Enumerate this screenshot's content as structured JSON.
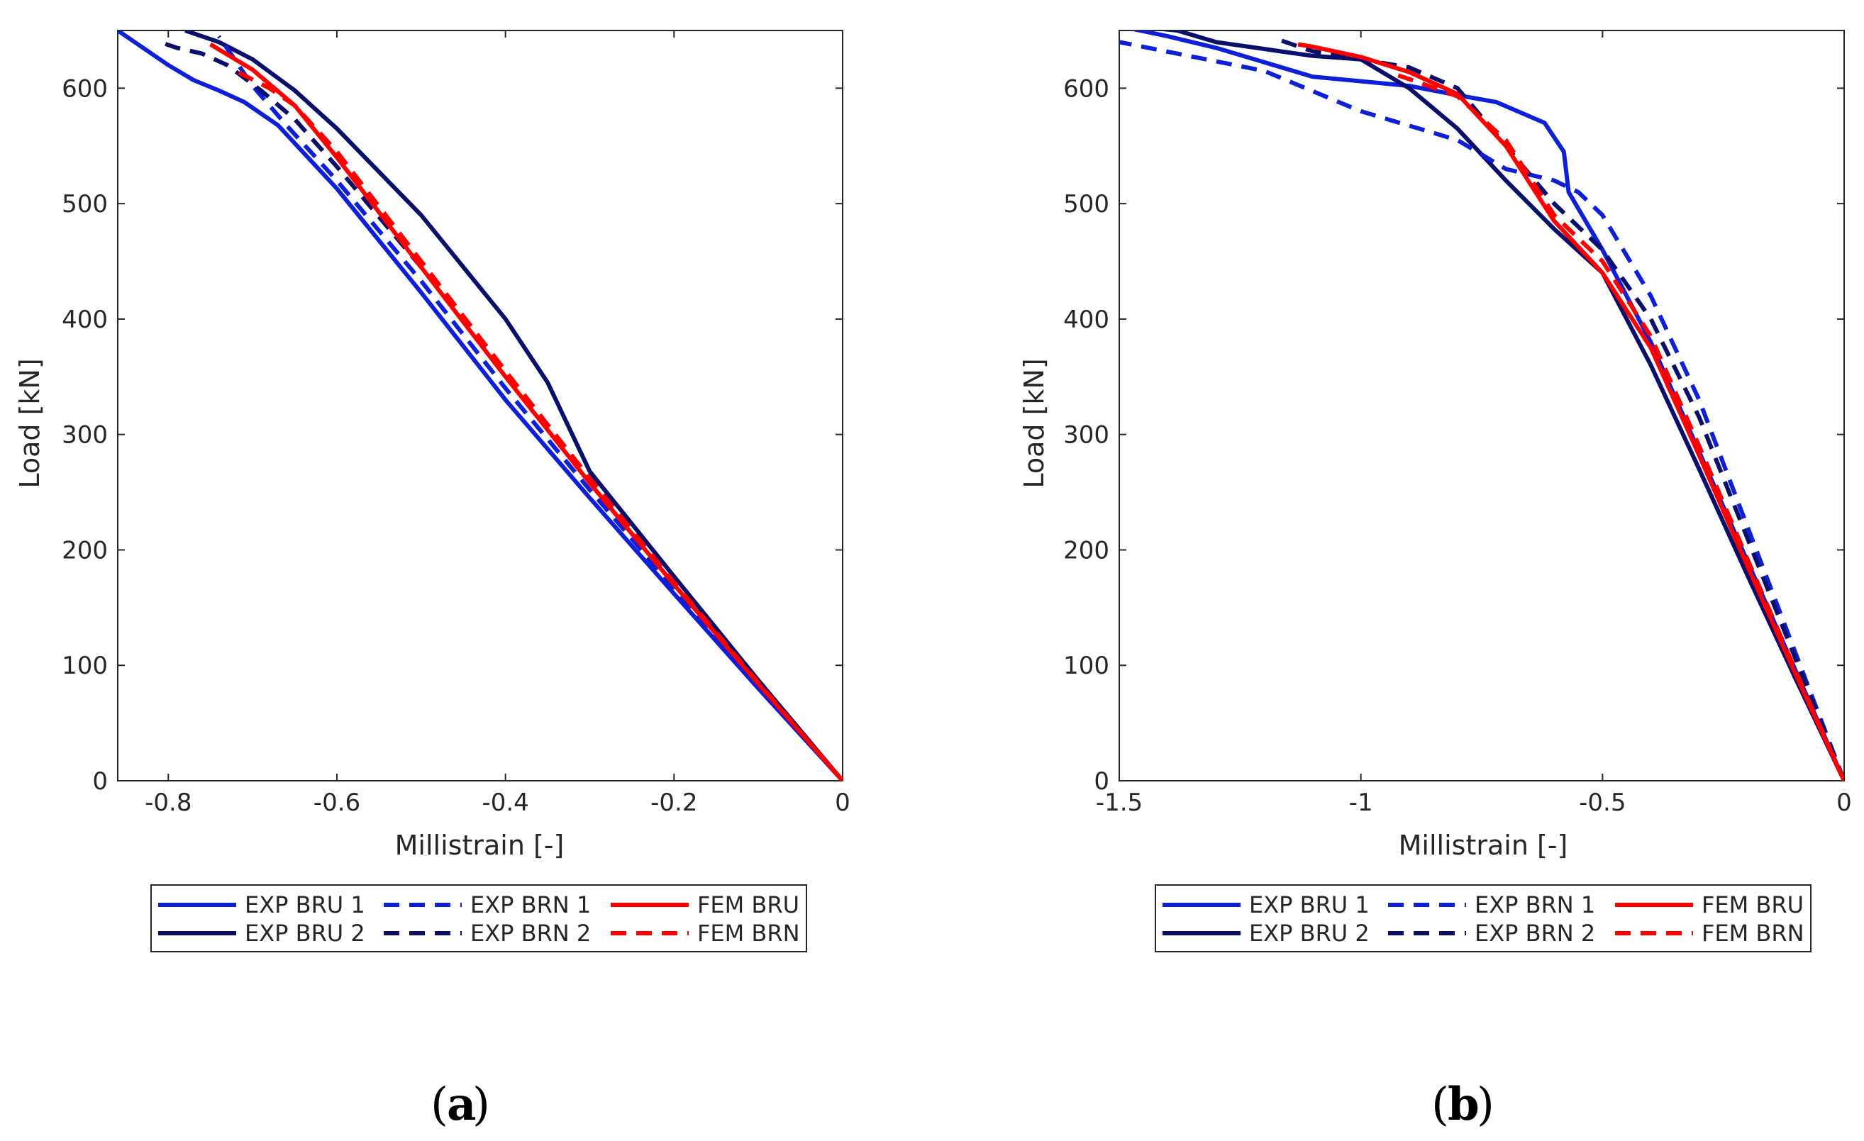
{
  "colors": {
    "exp_bru_1": "#0d1fd8",
    "exp_bru_2": "#0a0f6b",
    "fem": "#ff0000",
    "axis": "#262626"
  },
  "chart_data": [
    {
      "type": "line",
      "panel_label": "a",
      "xlabel": "Millistrain [-]",
      "ylabel": "Load [kN]",
      "xlim": [
        -0.86,
        0
      ],
      "ylim": [
        0,
        650
      ],
      "xticks": [
        -0.8,
        -0.6,
        -0.4,
        -0.2,
        0
      ],
      "xtick_labels": [
        "-0.8",
        "-0.6",
        "-0.4",
        "-0.2",
        "0"
      ],
      "yticks": [
        0,
        100,
        200,
        300,
        400,
        500,
        600
      ],
      "ytick_labels": [
        "0",
        "100",
        "200",
        "300",
        "400",
        "500",
        "600"
      ],
      "grid": false,
      "legend_position": "below",
      "series": [
        {
          "name": "EXP BRU 1",
          "color": "#0d1fd8",
          "dash": "solid",
          "x": [
            0,
            -0.1,
            -0.2,
            -0.3,
            -0.4,
            -0.5,
            -0.6,
            -0.67,
            -0.71,
            -0.74,
            -0.77,
            -0.8,
            -0.84,
            -0.86
          ],
          "y": [
            0,
            80,
            162,
            245,
            330,
            423,
            513,
            568,
            588,
            598,
            607,
            620,
            640,
            650
          ]
        },
        {
          "name": "EXP BRU 2",
          "color": "#0a0f6b",
          "dash": "solid",
          "x": [
            0,
            -0.1,
            -0.2,
            -0.3,
            -0.35,
            -0.4,
            -0.5,
            -0.6,
            -0.65,
            -0.7,
            -0.74,
            -0.78
          ],
          "y": [
            0,
            87,
            177,
            268,
            345,
            400,
            490,
            565,
            598,
            625,
            640,
            650
          ]
        },
        {
          "name": "EXP BRN 1",
          "color": "#0d1fd8",
          "dash": "dashed",
          "x": [
            0,
            -0.1,
            -0.2,
            -0.3,
            -0.4,
            -0.5,
            -0.6,
            -0.66,
            -0.7,
            -0.74
          ],
          "y": [
            0,
            82,
            167,
            252,
            340,
            433,
            520,
            568,
            602,
            645
          ]
        },
        {
          "name": "EXP BRN 2",
          "color": "#0a0f6b",
          "dash": "dashed",
          "x": [
            0,
            -0.1,
            -0.2,
            -0.3,
            -0.4,
            -0.5,
            -0.6,
            -0.65,
            -0.69,
            -0.73,
            -0.76,
            -0.79,
            -0.81
          ],
          "y": [
            0,
            85,
            173,
            262,
            352,
            445,
            532,
            573,
            598,
            620,
            630,
            635,
            640
          ]
        },
        {
          "name": "FEM BRU",
          "color": "#ff0000",
          "dash": "solid",
          "x": [
            0,
            -0.1,
            -0.2,
            -0.3,
            -0.4,
            -0.5,
            -0.6,
            -0.65,
            -0.7,
            -0.75
          ],
          "y": [
            0,
            84,
            170,
            258,
            350,
            445,
            540,
            585,
            616,
            638
          ]
        },
        {
          "name": "FEM BRN",
          "color": "#ff0000",
          "dash": "dashed",
          "x": [
            0,
            -0.1,
            -0.2,
            -0.3,
            -0.4,
            -0.5,
            -0.6,
            -0.65,
            -0.68,
            -0.72
          ],
          "y": [
            0,
            85,
            172,
            262,
            355,
            450,
            545,
            585,
            600,
            615
          ]
        }
      ]
    },
    {
      "type": "line",
      "panel_label": "b",
      "xlabel": "Millistrain [-]",
      "ylabel": "Load [kN]",
      "xlim": [
        -1.5,
        0
      ],
      "ylim": [
        0,
        650
      ],
      "xticks": [
        -1.5,
        -1,
        -0.5,
        0
      ],
      "xtick_labels": [
        "-1.5",
        "-1",
        "-0.5",
        "0"
      ],
      "yticks": [
        0,
        100,
        200,
        300,
        400,
        500,
        600
      ],
      "ytick_labels": [
        "0",
        "100",
        "200",
        "300",
        "400",
        "500",
        "600"
      ],
      "grid": false,
      "legend_position": "below",
      "series": [
        {
          "name": "EXP BRU 1",
          "color": "#0d1fd8",
          "dash": "solid",
          "x": [
            0,
            -0.1,
            -0.2,
            -0.3,
            -0.4,
            -0.5,
            -0.57,
            -0.58,
            -0.58,
            -0.62,
            -0.72,
            -0.8,
            -0.9,
            -1.1,
            -1.3,
            -1.4,
            -1.48
          ],
          "y": [
            0,
            95,
            190,
            285,
            380,
            460,
            510,
            545,
            545,
            570,
            588,
            594,
            602,
            610,
            635,
            645,
            652
          ]
        },
        {
          "name": "EXP BRU 2",
          "color": "#0a0f6b",
          "dash": "solid",
          "x": [
            0,
            -0.1,
            -0.2,
            -0.3,
            -0.4,
            -0.5,
            -0.6,
            -0.7,
            -0.8,
            -0.9,
            -1.0,
            -1.1,
            -1.3,
            -1.38,
            -1.43
          ],
          "y": [
            0,
            88,
            178,
            270,
            360,
            440,
            478,
            520,
            565,
            600,
            625,
            628,
            640,
            650,
            652
          ]
        },
        {
          "name": "EXP BRN 1",
          "color": "#0d1fd8",
          "dash": "dashed",
          "x": [
            0,
            -0.1,
            -0.2,
            -0.3,
            -0.4,
            -0.5,
            -0.55,
            -0.6,
            -0.7,
            -0.8,
            -1.0,
            -1.2,
            -1.5
          ],
          "y": [
            0,
            110,
            220,
            330,
            420,
            490,
            510,
            520,
            530,
            555,
            580,
            615,
            640
          ]
        },
        {
          "name": "EXP BRN 2",
          "color": "#0a0f6b",
          "dash": "dashed",
          "x": [
            0,
            -0.1,
            -0.2,
            -0.3,
            -0.4,
            -0.5,
            -0.6,
            -0.7,
            -0.8,
            -0.9,
            -1.0,
            -1.1,
            -1.17
          ],
          "y": [
            0,
            105,
            210,
            315,
            400,
            460,
            500,
            550,
            600,
            618,
            625,
            632,
            642
          ]
        },
        {
          "name": "FEM BRU",
          "color": "#ff0000",
          "dash": "solid",
          "x": [
            0,
            -0.1,
            -0.2,
            -0.3,
            -0.4,
            -0.5,
            -0.6,
            -0.7,
            -0.8,
            -0.9,
            -1.0,
            -1.1,
            -1.13
          ],
          "y": [
            0,
            92,
            186,
            282,
            375,
            440,
            485,
            550,
            595,
            614,
            627,
            636,
            638
          ]
        },
        {
          "name": "FEM BRN",
          "color": "#ff0000",
          "dash": "dashed",
          "x": [
            0,
            -0.1,
            -0.2,
            -0.3,
            -0.4,
            -0.5,
            -0.6,
            -0.7,
            -0.8,
            -0.9,
            -0.93
          ],
          "y": [
            0,
            95,
            192,
            290,
            385,
            450,
            490,
            555,
            593,
            608,
            612
          ]
        }
      ]
    }
  ]
}
